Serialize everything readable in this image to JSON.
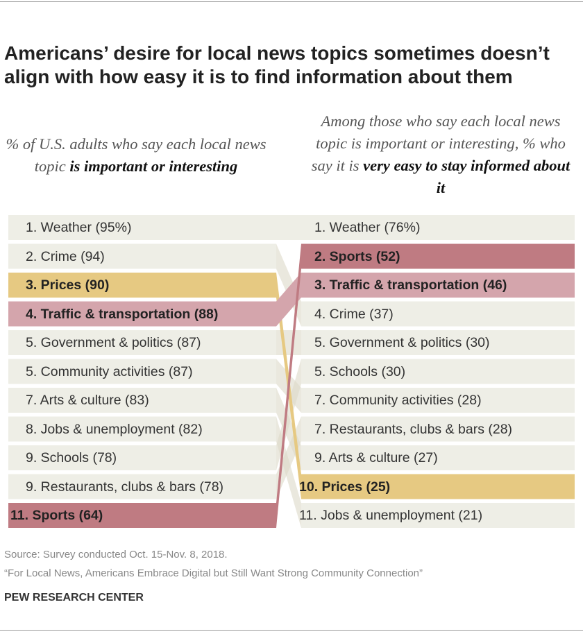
{
  "title": "Americans’ desire for local news topics sometimes doesn’t align with how easy it is to find information about them",
  "subtitle_left": {
    "plain": "% of U.S. adults who say each local news topic ",
    "bold": "is important or interesting"
  },
  "subtitle_right": {
    "plain": "Among those who say each local news topic is important or interesting, % who say it is ",
    "bold": "very easy to stay informed about it"
  },
  "colors": {
    "bar": "#eeeee6",
    "connector": "#dcd9c8",
    "prices": "#e6c982",
    "sports": "#bf7b82",
    "traffic": "#d4a5ac"
  },
  "chart_data": {
    "type": "bump",
    "left": [
      {
        "rank": "1.",
        "topic": "Weather",
        "value": 95,
        "label": "1. Weather (95%)"
      },
      {
        "rank": "2.",
        "topic": "Crime",
        "value": 94,
        "label": "2. Crime (94)"
      },
      {
        "rank": "3.",
        "topic": "Prices",
        "value": 90,
        "label": "3. Prices (90)",
        "highlight": "prices"
      },
      {
        "rank": "4.",
        "topic": "Traffic & transportation",
        "value": 88,
        "label": "4. Traffic & transportation (88)",
        "highlight": "traffic"
      },
      {
        "rank": "5.",
        "topic": "Government & politics",
        "value": 87,
        "label": "5. Government & politics (87)"
      },
      {
        "rank": "5.",
        "topic": "Community activities",
        "value": 87,
        "label": "5. Community activities (87)"
      },
      {
        "rank": "7.",
        "topic": "Arts & culture",
        "value": 83,
        "label": "7. Arts & culture (83)"
      },
      {
        "rank": "8.",
        "topic": "Jobs & unemployment",
        "value": 82,
        "label": "8. Jobs & unemployment (82)"
      },
      {
        "rank": "9.",
        "topic": "Schools",
        "value": 78,
        "label": "9. Schools (78)"
      },
      {
        "rank": "9.",
        "topic": "Restaurants, clubs & bars",
        "value": 78,
        "label": "9. Restaurants, clubs & bars (78)"
      },
      {
        "rank": "11.",
        "topic": "Sports",
        "value": 64,
        "label": "11. Sports (64)",
        "highlight": "sports"
      }
    ],
    "right": [
      {
        "rank": "1.",
        "topic": "Weather",
        "value": 76,
        "label": "1. Weather (76%)"
      },
      {
        "rank": "2.",
        "topic": "Sports",
        "value": 52,
        "label": "2. Sports (52)",
        "highlight": "sports"
      },
      {
        "rank": "3.",
        "topic": "Traffic & transportation",
        "value": 46,
        "label": "3. Traffic & transportation (46)",
        "highlight": "traffic"
      },
      {
        "rank": "4.",
        "topic": "Crime",
        "value": 37,
        "label": "4. Crime (37)"
      },
      {
        "rank": "5.",
        "topic": "Government & politics",
        "value": 30,
        "label": "5. Government & politics (30)"
      },
      {
        "rank": "5.",
        "topic": "Schools",
        "value": 30,
        "label": "5. Schools (30)"
      },
      {
        "rank": "7.",
        "topic": "Community activities",
        "value": 28,
        "label": "7. Community activities (28)"
      },
      {
        "rank": "7.",
        "topic": "Restaurants, clubs & bars",
        "value": 28,
        "label": "7. Restaurants, clubs & bars (28)"
      },
      {
        "rank": "9.",
        "topic": "Arts & culture",
        "value": 27,
        "label": "9. Arts & culture (27)"
      },
      {
        "rank": "10.",
        "topic": "Prices",
        "value": 25,
        "label": "10. Prices (25)",
        "highlight": "prices"
      },
      {
        "rank": "11.",
        "topic": "Jobs & unemployment",
        "value": 21,
        "label": "11. Jobs & unemployment (21)"
      }
    ]
  },
  "footer": {
    "source": "Source: Survey conducted Oct. 15-Nov. 8, 2018.",
    "report": "“For Local News, Americans Embrace Digital but Still Want Strong Community Connection”",
    "org": "PEW RESEARCH CENTER"
  }
}
